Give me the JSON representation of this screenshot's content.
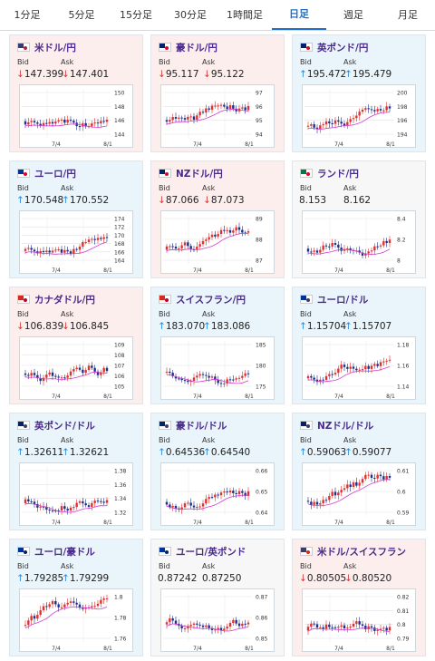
{
  "tabs": [
    {
      "label": "1分足",
      "active": false
    },
    {
      "label": "5分足",
      "active": false
    },
    {
      "label": "15分足",
      "active": false
    },
    {
      "label": "30分足",
      "active": false
    },
    {
      "label": "1時間足",
      "active": false
    },
    {
      "label": "日足",
      "active": true
    },
    {
      "label": "週足",
      "active": false
    },
    {
      "label": "月足",
      "active": false
    }
  ],
  "bid_label": "Bid",
  "ask_label": "Ask",
  "cards": [
    {
      "pair": "米ドル/円",
      "dir": "down",
      "bid": "147.399",
      "ask": "147.401",
      "flag": [
        "#3c3b6e",
        "#b22234"
      ],
      "ticks": [
        "150",
        "148",
        "146",
        "144"
      ],
      "xticks": [
        "7/4",
        "8/1"
      ]
    },
    {
      "pair": "豪ドル/円",
      "dir": "down",
      "bid": "95.117",
      "ask": "95.122",
      "flag": [
        "#012169",
        "#e4002b"
      ],
      "ticks": [
        "97",
        "96",
        "95",
        "94"
      ],
      "xticks": [
        "7/4",
        "8/1"
      ]
    },
    {
      "pair": "英ポンド/円",
      "dir": "up",
      "bid": "195.472",
      "ask": "195.479",
      "flag": [
        "#012169",
        "#c8102e"
      ],
      "ticks": [
        "200",
        "198",
        "196",
        "194"
      ],
      "xticks": [
        "7/4",
        "8/1"
      ]
    },
    {
      "pair": "ユーロ/円",
      "dir": "up",
      "bid": "170.548",
      "ask": "170.552",
      "flag": [
        "#003399",
        "#e4002b"
      ],
      "ticks": [
        "174",
        "172",
        "170",
        "168",
        "166",
        "164"
      ],
      "xticks": [
        "7/4",
        "8/1"
      ]
    },
    {
      "pair": "NZドル/円",
      "dir": "down",
      "bid": "87.066",
      "ask": "87.073",
      "flag": [
        "#012169",
        "#c8102e"
      ],
      "ticks": [
        "89",
        "88",
        "87"
      ],
      "xticks": [
        "7/4",
        "8/1"
      ]
    },
    {
      "pair": "ランド/円",
      "dir": "flat",
      "bid": "8.153",
      "ask": "8.162",
      "flag": [
        "#007749",
        "#e4002b"
      ],
      "ticks": [
        "8.4",
        "8.2",
        "8"
      ],
      "xticks": [
        "7/4",
        "8/1"
      ]
    },
    {
      "pair": "カナダドル/円",
      "dir": "down",
      "bid": "106.839",
      "ask": "106.845",
      "flag": [
        "#d52b1e",
        "#bc002d"
      ],
      "ticks": [
        "109",
        "108",
        "107",
        "106",
        "105"
      ],
      "xticks": [
        "7/4",
        "8/1"
      ]
    },
    {
      "pair": "スイスフラン/円",
      "dir": "up",
      "bid": "183.070",
      "ask": "183.086",
      "flag": [
        "#d52b1e",
        "#bc002d"
      ],
      "ticks": [
        "185",
        "180",
        "175"
      ],
      "xticks": [
        "7/4",
        "8/1"
      ]
    },
    {
      "pair": "ユーロ/ドル",
      "dir": "up",
      "bid": "1.15704",
      "ask": "1.15707",
      "flag": [
        "#003399",
        "#3c3b6e"
      ],
      "ticks": [
        "1.18",
        "1.16",
        "1.14"
      ],
      "xticks": [
        "7/4",
        "8/1"
      ]
    },
    {
      "pair": "英ポンド/ドル",
      "dir": "up",
      "bid": "1.32611",
      "ask": "1.32621",
      "flag": [
        "#012169",
        "#3c3b6e"
      ],
      "ticks": [
        "1.38",
        "1.36",
        "1.34",
        "1.32"
      ],
      "xticks": [
        "7/4",
        "8/1"
      ]
    },
    {
      "pair": "豪ドル/ドル",
      "dir": "up",
      "bid": "0.64536",
      "ask": "0.64540",
      "flag": [
        "#012169",
        "#3c3b6e"
      ],
      "ticks": [
        "0.66",
        "0.65",
        "0.64"
      ],
      "xticks": [
        "7/4",
        "8/1"
      ]
    },
    {
      "pair": "NZドル/ドル",
      "dir": "up",
      "bid": "0.59063",
      "ask": "0.59077",
      "flag": [
        "#012169",
        "#3c3b6e"
      ],
      "ticks": [
        "0.61",
        "0.6",
        "0.59"
      ],
      "xticks": [
        "7/4",
        "8/1"
      ]
    },
    {
      "pair": "ユーロ/豪ドル",
      "dir": "up",
      "bid": "1.79285",
      "ask": "1.79299",
      "flag": [
        "#003399",
        "#012169"
      ],
      "ticks": [
        "1.8",
        "1.78",
        "1.76"
      ],
      "xticks": [
        "7/4",
        "8/1"
      ]
    },
    {
      "pair": "ユーロ/英ポンド",
      "dir": "flat",
      "bid": "0.87242",
      "ask": "0.87250",
      "flag": [
        "#003399",
        "#012169"
      ],
      "ticks": [
        "0.87",
        "0.86",
        "0.85"
      ],
      "xticks": [
        "7/4",
        "8/1"
      ]
    },
    {
      "pair": "米ドル/スイスフラン",
      "dir": "down",
      "bid": "0.80505",
      "ask": "0.80520",
      "flag": [
        "#3c3b6e",
        "#d52b1e"
      ],
      "ticks": [
        "0.82",
        "0.81",
        "0.8",
        "0.79"
      ],
      "xticks": [
        "7/4",
        "8/1"
      ]
    }
  ]
}
